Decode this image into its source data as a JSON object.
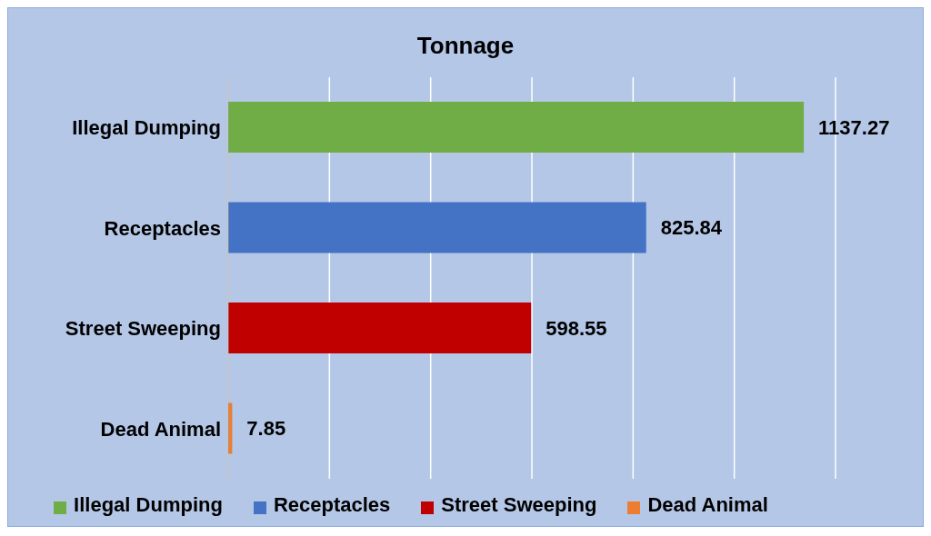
{
  "chart_data": {
    "type": "bar",
    "title": "Tonnage",
    "orientation": "horizontal",
    "stacked": true,
    "categories": [
      "Illegal Dumping",
      "Receptacles",
      "Street Sweeping",
      "Dead Animal"
    ],
    "series": [
      {
        "name": "Illegal Dumping",
        "color": "#70ad47",
        "values": [
          1137.27,
          null,
          null,
          null
        ]
      },
      {
        "name": "Receptacles",
        "color": "#4472c4",
        "values": [
          null,
          825.84,
          null,
          null
        ]
      },
      {
        "name": "Street Sweeping",
        "color": "#c00000",
        "values": [
          null,
          null,
          598.55,
          null
        ]
      },
      {
        "name": "Dead Animal",
        "color": "#ed7d31",
        "values": [
          null,
          null,
          null,
          7.85
        ]
      }
    ],
    "xlim": [
      0,
      1200
    ],
    "tick_labels": "y",
    "grid": "x",
    "data_labels": true,
    "legend": "bottom"
  }
}
